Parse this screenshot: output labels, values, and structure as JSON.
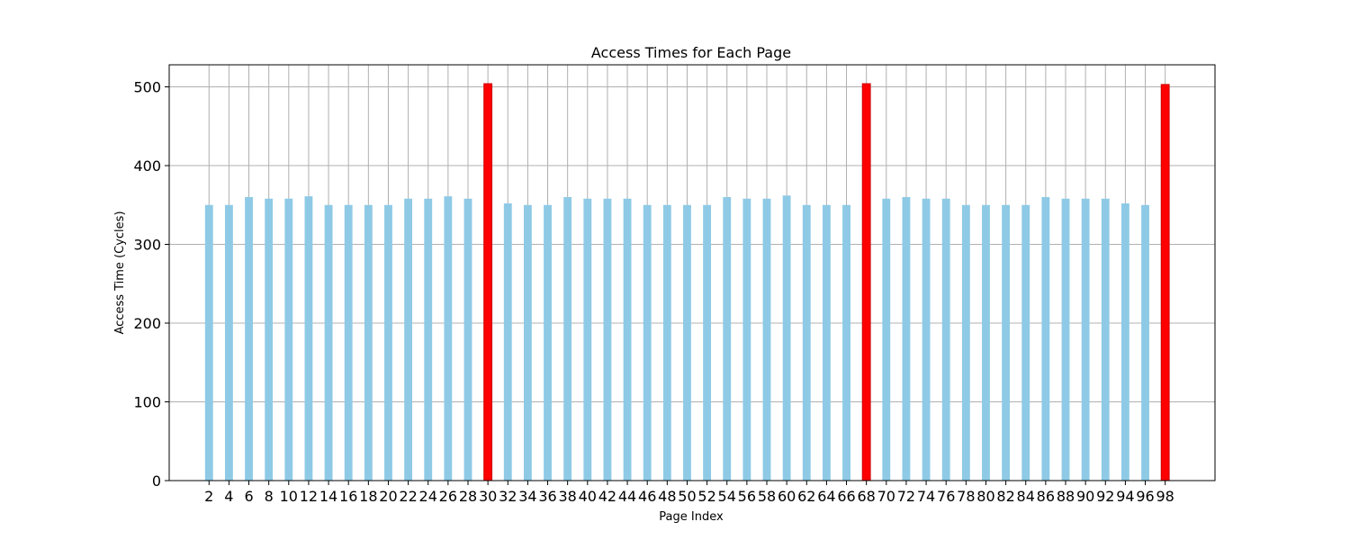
{
  "chart_data": {
    "type": "bar",
    "title": "Access Times for Each Page",
    "xlabel": "Page Index",
    "ylabel": "Access Time (Cycles)",
    "x": [
      2,
      4,
      6,
      8,
      10,
      12,
      14,
      16,
      18,
      20,
      22,
      24,
      26,
      28,
      30,
      32,
      34,
      36,
      38,
      40,
      42,
      44,
      46,
      48,
      50,
      52,
      54,
      56,
      58,
      60,
      62,
      64,
      66,
      68,
      70,
      72,
      74,
      76,
      78,
      80,
      82,
      84,
      86,
      88,
      90,
      92,
      94,
      96,
      98
    ],
    "values": [
      350,
      350,
      360,
      358,
      358,
      361,
      350,
      350,
      350,
      350,
      358,
      358,
      361,
      358,
      504,
      352,
      350,
      350,
      360,
      358,
      358,
      358,
      350,
      350,
      350,
      350,
      360,
      358,
      358,
      362,
      350,
      350,
      350,
      504,
      358,
      360,
      358,
      358,
      350,
      350,
      350,
      350,
      360,
      358,
      358,
      358,
      352,
      350,
      503
    ],
    "highlight": [
      30,
      68,
      98
    ],
    "colors": {
      "normal": "#8ecae6",
      "highlight": "#ff0000",
      "highlight_edge": "#cc0000"
    },
    "ylim": [
      0,
      528
    ],
    "xlim": [
      -2,
      103
    ],
    "yticks": [
      0,
      100,
      200,
      300,
      400,
      500
    ],
    "grid": true
  }
}
